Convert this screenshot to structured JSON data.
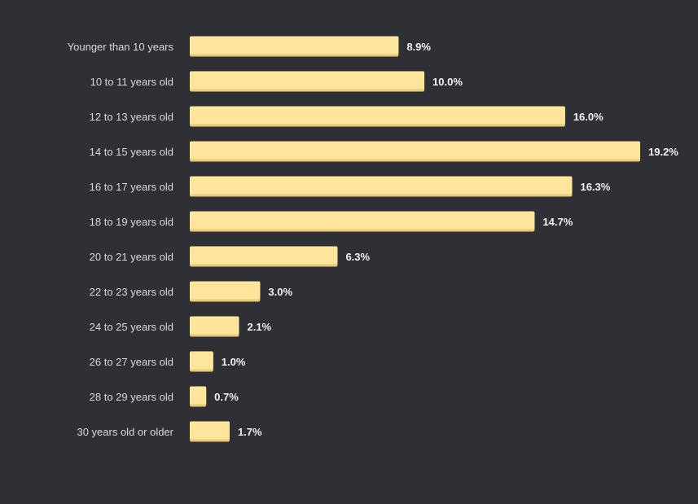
{
  "colors": {
    "background": "#2e3035",
    "bar": "#fde59b",
    "bar_shadow": "#e8c978",
    "category_text": "#d9d9d9",
    "value_text": "#f2f2f2"
  },
  "chart_data": {
    "type": "bar",
    "orientation": "horizontal",
    "title": "",
    "xlabel": "",
    "ylabel": "",
    "grid": false,
    "xlim": [
      0,
      19.2
    ],
    "categories": [
      "Younger than 10 years",
      "10 to 11 years old",
      "12 to 13 years old",
      "14 to 15 years old",
      "16 to 17 years old",
      "18 to 19 years old",
      "20 to 21 years old",
      "22 to 23 years old",
      "24 to 25 years old",
      "26 to 27 years old",
      "28 to 29 years old",
      "30 years old or older"
    ],
    "values": [
      8.9,
      10.0,
      16.0,
      19.2,
      16.3,
      14.7,
      6.3,
      3.0,
      2.1,
      1.0,
      0.7,
      1.7
    ],
    "value_labels": [
      "8.9%",
      "10.0%",
      "16.0%",
      "19.2%",
      "16.3%",
      "14.7%",
      "6.3%",
      "3.0%",
      "2.1%",
      "1.0%",
      "0.7%",
      "1.7%"
    ]
  }
}
